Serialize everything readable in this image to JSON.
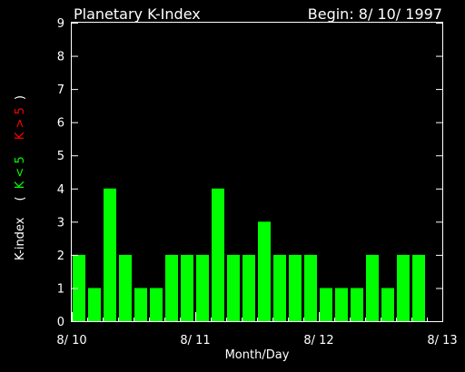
{
  "chart_data": {
    "type": "bar",
    "title": "Planetary K-Index",
    "begin_label": "Begin: 8/ 10/ 1997",
    "ylabel_prefix": "K-index",
    "ylabel_green": "K < 5",
    "ylabel_red": "K > 5",
    "xlabel": "Month/Day",
    "ylim": [
      0,
      9
    ],
    "yticks": [
      "0",
      "1",
      "2",
      "3",
      "4",
      "5",
      "6",
      "7",
      "8",
      "9"
    ],
    "x_tick_labels": [
      "8/ 10",
      "8/ 11",
      "8/ 12",
      "8/ 13"
    ],
    "values": [
      2,
      1,
      4,
      2,
      1,
      1,
      2,
      2,
      2,
      4,
      2,
      2,
      3,
      2,
      2,
      2,
      1,
      1,
      1,
      2,
      1,
      2,
      2
    ],
    "grid": false,
    "colors": {
      "background": "#000000",
      "axes": "#ffffff",
      "bar": "#00ff00",
      "label_green": "#00ff00",
      "label_red": "#ff0000"
    }
  }
}
